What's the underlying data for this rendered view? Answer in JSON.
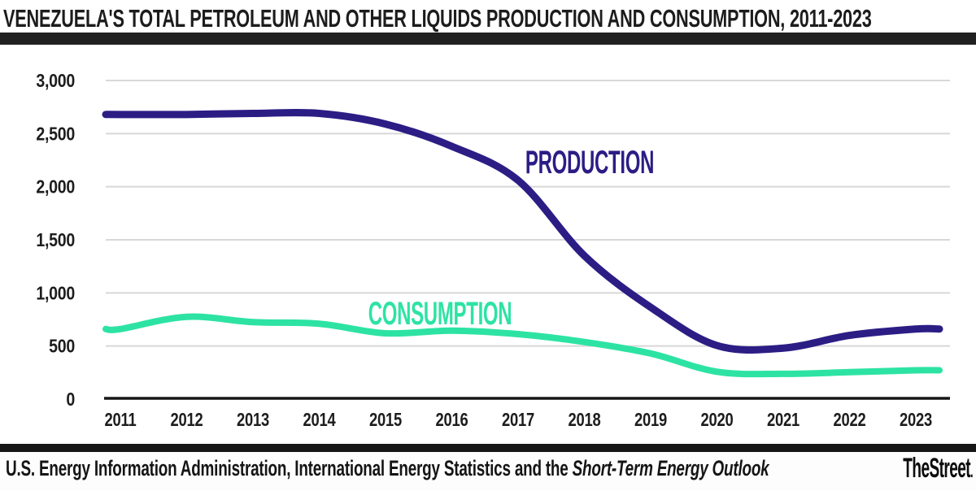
{
  "header": {
    "title": "VENEZUELA'S TOTAL PETROLEUM AND OTHER LIQUIDS PRODUCTION AND CONSUMPTION, 2011-2023"
  },
  "chart_data": {
    "type": "line",
    "title": "VENEZUELA'S TOTAL PETROLEUM AND OTHER LIQUIDS PRODUCTION AND CONSUMPTION, 2011-2023",
    "x": [
      2011,
      2012,
      2013,
      2014,
      2015,
      2016,
      2017,
      2018,
      2019,
      2020,
      2021,
      2022,
      2023
    ],
    "series": [
      {
        "name": "PRODUCTION",
        "color": "#2c1d85",
        "values": [
          2680,
          2680,
          2690,
          2690,
          2590,
          2380,
          2060,
          1350,
          865,
          505,
          480,
          600,
          660
        ]
      },
      {
        "name": "CONSUMPTION",
        "color": "#2de3a4",
        "values": [
          660,
          775,
          725,
          710,
          620,
          645,
          612,
          538,
          430,
          258,
          238,
          254,
          272
        ]
      }
    ],
    "ylim": [
      0,
      3000
    ],
    "yticks": [
      0,
      500,
      1000,
      1500,
      2000,
      2500,
      3000
    ],
    "ytick_labels": [
      "0",
      "500",
      "1,000",
      "1,500",
      "2,000",
      "2,500",
      "3,000"
    ],
    "grid": true,
    "legend": "inline-labels",
    "gridline_color": "#d8d8d8",
    "axis_color": "#161616",
    "tick_label_color": "#1d1d1d"
  },
  "footer": {
    "source_text": "U.S. Energy Information Administration, International Energy Statistics and the ",
    "source_italic": "Short-Term Energy Outlook",
    "brand": "TheStreet",
    "brand_suffix": "."
  }
}
